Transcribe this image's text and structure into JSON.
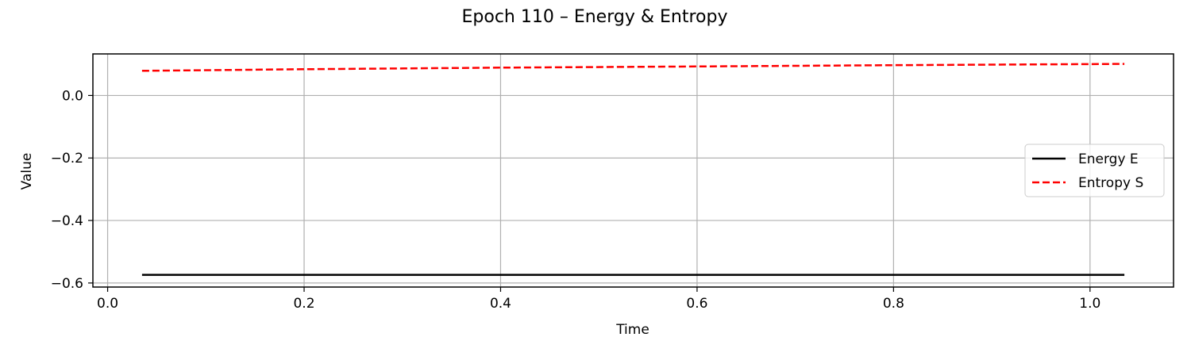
{
  "chart_data": {
    "type": "line",
    "title": "Epoch 110 – Energy & Entropy",
    "xlabel": "Time",
    "ylabel": "Value",
    "xlim": [
      -0.015,
      1.085
    ],
    "ylim": [
      -0.613,
      0.133
    ],
    "xticks": [
      0.0,
      0.2,
      0.4,
      0.6,
      0.8,
      1.0
    ],
    "xtick_labels": [
      "0.0",
      "0.2",
      "0.4",
      "0.6",
      "0.8",
      "1.0"
    ],
    "yticks": [
      0.0,
      -0.2,
      -0.4,
      -0.6
    ],
    "ytick_labels": [
      "0.0",
      "−0.2",
      "−0.4",
      "−0.6"
    ],
    "grid": true,
    "legend_position": "center-right",
    "series": [
      {
        "name": "Energy E",
        "color": "#000000",
        "style": "solid",
        "x": [
          0.035,
          1.035
        ],
        "y": [
          -0.574,
          -0.574
        ]
      },
      {
        "name": "Entropy S",
        "color": "#ff0000",
        "style": "dashed",
        "x": [
          0.035,
          0.2,
          0.4,
          0.6,
          0.8,
          1.035
        ],
        "y": [
          0.079,
          0.084,
          0.089,
          0.093,
          0.097,
          0.101
        ]
      }
    ]
  }
}
